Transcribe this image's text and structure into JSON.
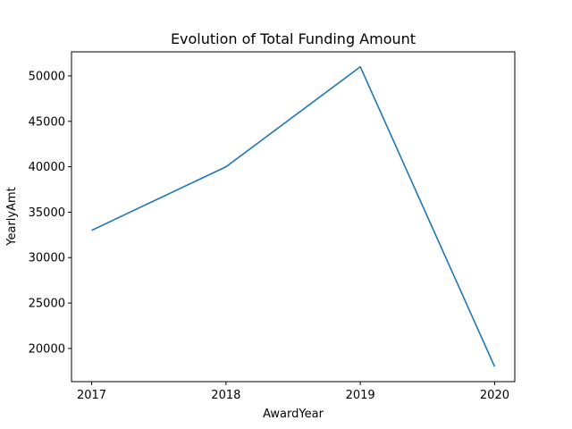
{
  "chart_data": {
    "type": "line",
    "title": "Evolution of Total Funding Amount",
    "xlabel": "AwardYear",
    "ylabel": "YearlyAmt",
    "x": [
      2017,
      2018,
      2019,
      2020
    ],
    "series": [
      {
        "values": [
          33000,
          40000,
          51000,
          18000
        ],
        "color": "#1f77b4"
      }
    ],
    "xticks": [
      "2017",
      "2018",
      "2019",
      "2020"
    ],
    "yticks": [
      20000,
      25000,
      30000,
      35000,
      40000,
      45000,
      50000
    ],
    "ytick_labels": [
      "20000",
      "25000",
      "30000",
      "35000",
      "40000",
      "45000",
      "50000"
    ],
    "xlim": [
      2016.85,
      2020.15
    ],
    "ylim": [
      16350,
      52650
    ],
    "grid": false,
    "legend": "none"
  }
}
